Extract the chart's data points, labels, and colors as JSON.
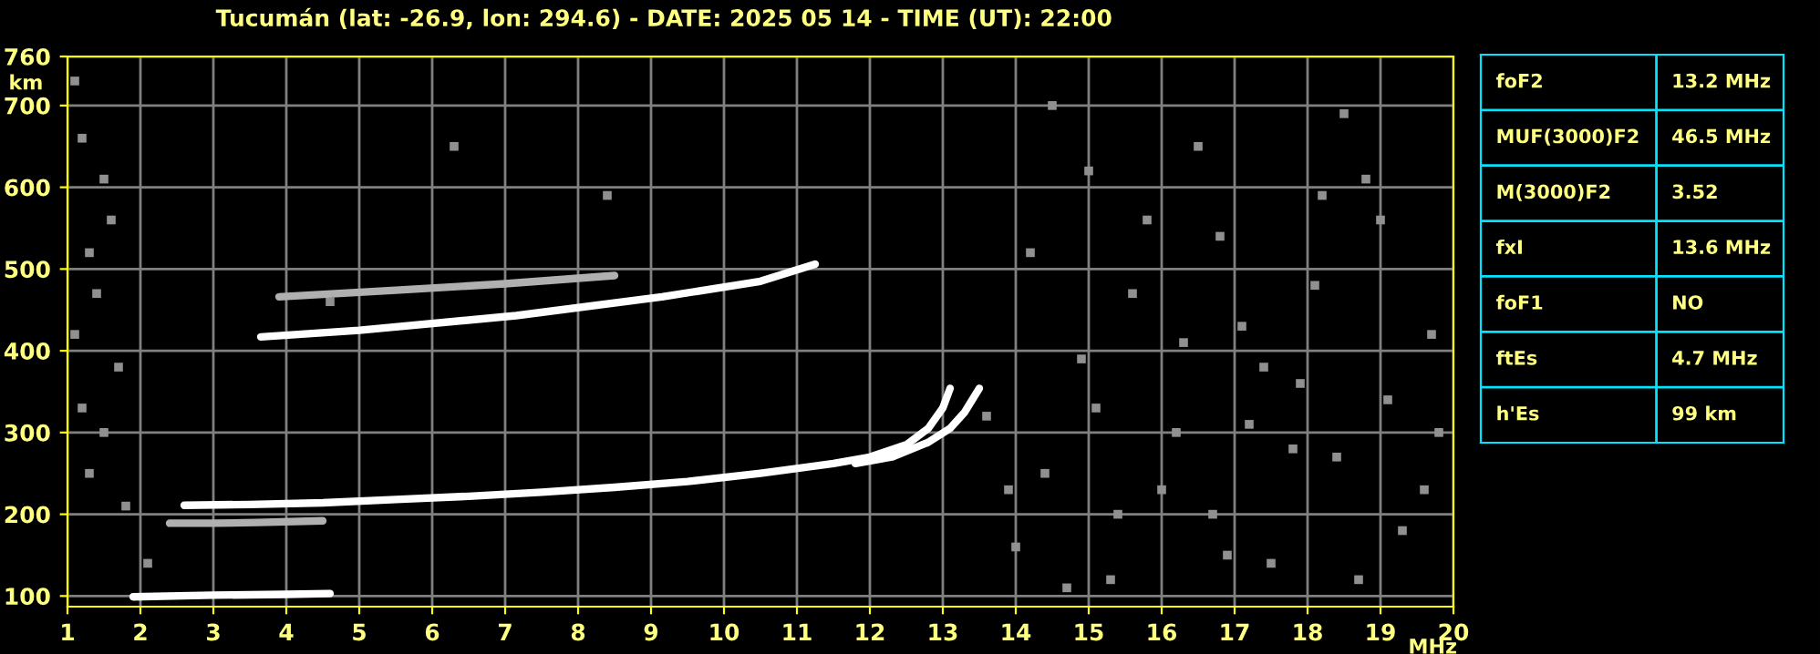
{
  "chart_data": [
    {
      "type": "line",
      "title": "Tucumán (lat: -26.9, lon: 294.6) - DATE: 2025 05 14 - TIME (UT): 22:00",
      "xlabel": "MHz",
      "ylabel": "km",
      "xlim": [
        1,
        20
      ],
      "ylim": [
        87,
        760
      ],
      "xticks": [
        1,
        2,
        3,
        4,
        5,
        6,
        7,
        8,
        9,
        10,
        11,
        12,
        13,
        14,
        15,
        16,
        17,
        18,
        19,
        20
      ],
      "yticks": [
        100,
        200,
        300,
        400,
        500,
        600,
        700,
        760
      ],
      "grid": true,
      "legend": false,
      "marker": "none",
      "line_style": "solid",
      "series": [
        {
          "color": "#ffffff",
          "x": [
            2.6,
            3.5,
            4.5,
            5.5,
            6.5,
            7.5,
            8.5,
            9.5,
            10.5,
            11.5,
            12.0,
            12.5,
            12.8,
            13.0,
            13.1
          ],
          "values": [
            211,
            212,
            214,
            218,
            222,
            227,
            233,
            240,
            250,
            262,
            270,
            285,
            305,
            330,
            354
          ]
        },
        {
          "color": "#ffffff",
          "x": [
            11.8,
            12.3,
            12.8,
            13.1,
            13.3,
            13.5
          ],
          "values": [
            262,
            270,
            288,
            305,
            325,
            354
          ]
        },
        {
          "color": "#ffffff",
          "x": [
            3.65,
            5.0,
            7.15,
            9.15,
            10.5,
            11.25
          ],
          "values": [
            417,
            425,
            443,
            466,
            485,
            506
          ]
        },
        {
          "color": "#b0b0b0",
          "x": [
            3.9,
            5.5,
            7.0,
            8.5
          ],
          "values": [
            466,
            474,
            482,
            492
          ]
        },
        {
          "color": "#ffffff",
          "x": [
            1.9,
            3.0,
            4.0,
            4.6
          ],
          "values": [
            99,
            101,
            102,
            103
          ]
        },
        {
          "color": "#b0b0b0",
          "x": [
            2.4,
            3.0,
            3.6,
            4.5
          ],
          "values": [
            189,
            189,
            190,
            192
          ]
        },
        {
          "type": "scatter",
          "marker": "square",
          "color": "#909090",
          "x": [
            1.1,
            1.2,
            1.5,
            1.6,
            1.3,
            1.4,
            1.1,
            1.7,
            1.2,
            1.5,
            1.3,
            1.8,
            2.1,
            4.6,
            6.3,
            8.4,
            13.6,
            14.0,
            14.4,
            14.9,
            15.3,
            15.8,
            16.2,
            16.7,
            17.1,
            17.5,
            17.9,
            18.4,
            18.8,
            19.3,
            19.7,
            14.2,
            14.7,
            15.1,
            15.6,
            16.0,
            16.5,
            16.9,
            17.4,
            17.8,
            18.2,
            18.7,
            19.1,
            19.6,
            14.5,
            15.4,
            16.3,
            17.2,
            18.1,
            19.0,
            19.8,
            15.0,
            16.8,
            18.5,
            13.9
          ],
          "values": [
            730,
            660,
            610,
            560,
            520,
            470,
            420,
            380,
            330,
            300,
            250,
            210,
            140,
            460,
            650,
            590,
            320,
            160,
            250,
            390,
            120,
            560,
            300,
            200,
            430,
            140,
            360,
            270,
            610,
            180,
            420,
            520,
            110,
            330,
            470,
            230,
            650,
            150,
            380,
            280,
            590,
            120,
            340,
            230,
            700,
            200,
            410,
            310,
            480,
            560,
            300,
            620,
            540,
            690,
            230
          ]
        }
      ]
    },
    {
      "type": "other",
      "annotations": [
        "foF2",
        "13.2 MHz",
        "MUF(3000)F2",
        "46.5 MHz",
        "M(3000)F2",
        "3.52",
        "fxI",
        "13.6 MHz",
        "foF1",
        "NO",
        "ftEs",
        "4.7 MHz",
        "h'Es",
        "99 km"
      ]
    }
  ]
}
